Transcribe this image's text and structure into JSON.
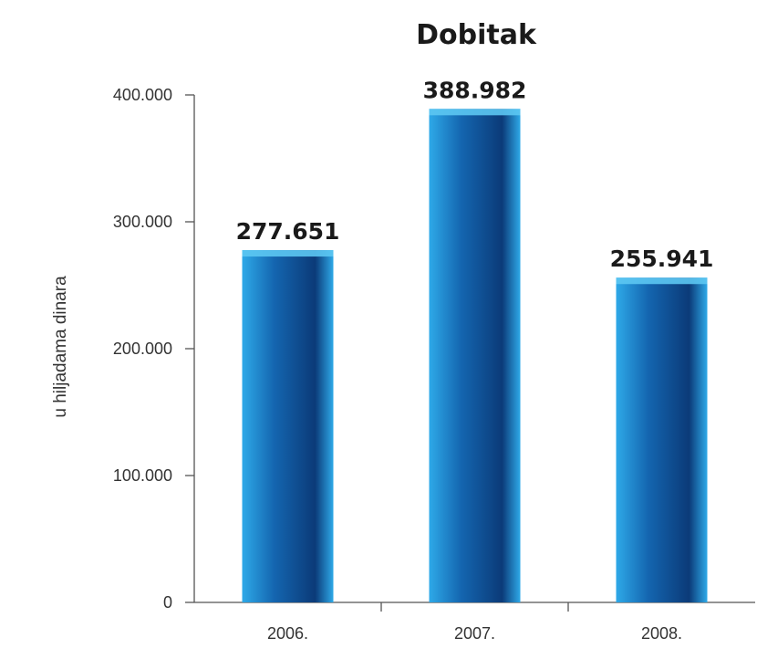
{
  "chart_data": {
    "type": "bar",
    "title": "Dobitak",
    "ylabel": "u hiljadama dinara",
    "xlabel": "",
    "categories": [
      "2006.",
      "2007.",
      "2008."
    ],
    "values": [
      277651,
      388982,
      255941
    ],
    "value_labels": [
      "277.651",
      "388.982",
      "255.941"
    ],
    "ylim": [
      0,
      400000
    ],
    "yticks": [
      0,
      100000,
      200000,
      300000,
      400000
    ],
    "ytick_labels": [
      "0",
      "100.000",
      "200.000",
      "300.000",
      "400.000"
    ],
    "grid": false,
    "colors": {
      "bar_dark": "#0b3a78",
      "bar_mid": "#1466b0",
      "bar_light": "#2ea9e8",
      "bar_cap": "#5cc6f2"
    }
  }
}
